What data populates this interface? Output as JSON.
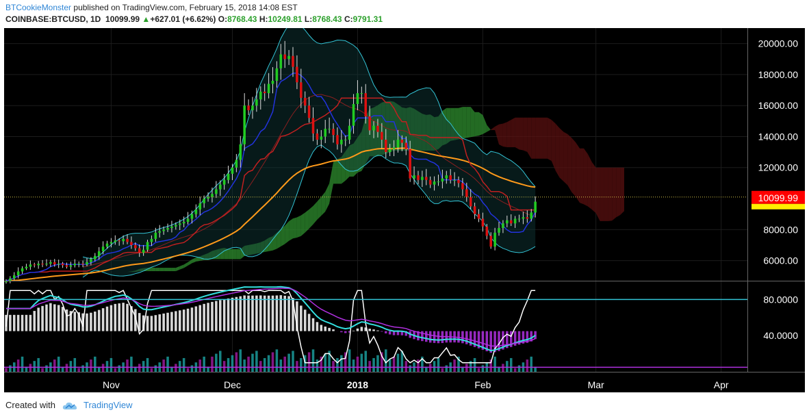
{
  "header": {
    "author": "BTCookieMonster",
    "published_text": "published on TradingView.com, February 15, 2018 14:08 EST",
    "symbol": "COINBASE:BTCUSD, 1D",
    "last": "10099.99",
    "change": "+627.01 (+6.62%)",
    "o_label": "O:",
    "o_val": "8768.43",
    "h_label": "H:",
    "h_val": "10249.81",
    "l_label": "L:",
    "l_val": "8768.43",
    "c_label": "C:",
    "c_val": "9791.31"
  },
  "footer": {
    "created_with": "Created with",
    "brand": "TradingView"
  },
  "colors": {
    "background": "#000000",
    "up_candle": "#22cc22",
    "down_candle": "#dd1111",
    "bollinger": "#33c4d6",
    "cloud_green": "#2f8f2f",
    "cloud_red": "#5a1010",
    "ema_orange": "#ff9a1a",
    "kijun_red": "#c02020",
    "tenkan_blue": "#2233dd",
    "stoch_k": "#ffffff",
    "stoch_d": "#33e0e0",
    "purple": "#b030e0",
    "level_line": "#33c4d6",
    "price_tag_bg": "#ff0000",
    "yellow_tag": "#ffee00"
  },
  "chart_data": {
    "type": "candlestick",
    "y_ticks": [
      "20000.00",
      "18000.00",
      "16000.00",
      "14000.00",
      "12000.00",
      "8000.00",
      "6000.00"
    ],
    "y_tick_values": [
      20000,
      18000,
      16000,
      14000,
      12000,
      8000,
      6000
    ],
    "ylim": [
      4700,
      21000
    ],
    "last_price_label": "10099.99",
    "last_price": 10099.99,
    "x_ticks": [
      "Nov",
      "Dec",
      "2018",
      "Feb",
      "Mar",
      "Apr"
    ],
    "x_tick_days": [
      26,
      56,
      87,
      118,
      146,
      177
    ],
    "osc_ticks": [
      "80.0000",
      "40.0000"
    ],
    "osc_tick_values": [
      80,
      40
    ],
    "osc_ylim": [
      0,
      100
    ],
    "total_days": 184,
    "closes": [
      4700,
      4850,
      5050,
      5300,
      5500,
      5600,
      5750,
      5700,
      5800,
      5750,
      5800,
      5900,
      5750,
      5800,
      5700,
      5600,
      5700,
      5800,
      5800,
      5750,
      5900,
      6100,
      6300,
      6600,
      6900,
      7100,
      7200,
      7300,
      7250,
      7400,
      7200,
      7000,
      6800,
      6500,
      6700,
      7200,
      7400,
      7800,
      7900,
      8000,
      8100,
      8200,
      8300,
      8400,
      8500,
      8700,
      9000,
      9300,
      9700,
      10000,
      10100,
      10300,
      10600,
      10900,
      11200,
      11600,
      12000,
      12500,
      13500,
      16000,
      15700,
      16000,
      16400,
      16900,
      16800,
      17400,
      17600,
      18400,
      19300,
      19000,
      19200,
      18500,
      17500,
      16500,
      16000,
      15200,
      14200,
      13800,
      14000,
      14500,
      14500,
      14100,
      13500,
      13800,
      13800,
      14700,
      16100,
      16800,
      16800,
      15300,
      14400,
      14700,
      14300,
      13800,
      13000,
      13200,
      13300,
      13800,
      13600,
      13200,
      11300,
      11500,
      11200,
      11400,
      11200,
      10900,
      11100,
      11100,
      11300,
      11500,
      11200,
      11200,
      11000,
      10600,
      10100,
      9500,
      9000,
      8700,
      8200,
      7600,
      6900,
      7800,
      8100,
      8400,
      8600,
      8400,
      8700,
      8700,
      8800,
      8700,
      9100,
      9800
    ]
  }
}
